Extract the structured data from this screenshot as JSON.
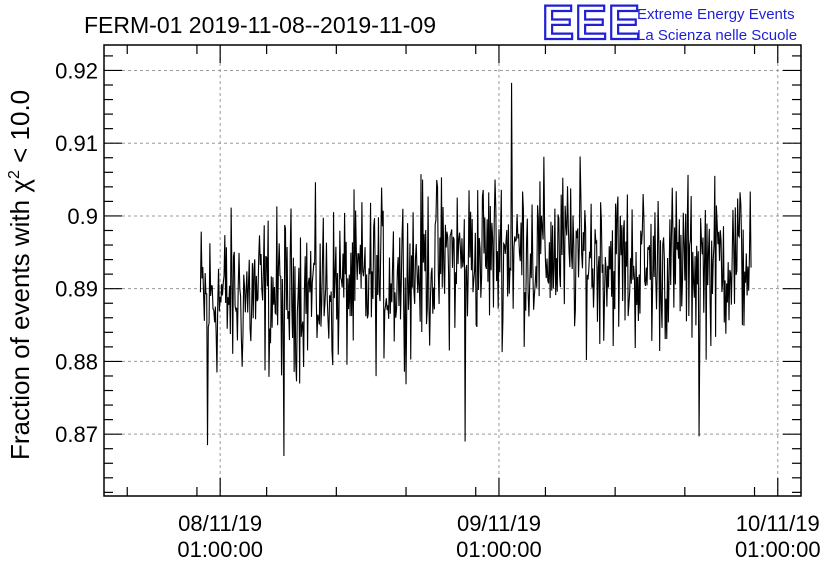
{
  "chart_data": {
    "type": "line",
    "title": "FERM-01 2019-11-08--2019-11-09",
    "ylabel": "Fraction of events with χ² < 10.0",
    "ylabel_parts": {
      "pre": "Fraction of events with ",
      "chi": "χ",
      "sup": "2",
      "post": " < 10.0"
    },
    "xlabel": "",
    "ylim": [
      0.8615,
      0.9235
    ],
    "xlim_hours": [
      -10.0,
      50.0
    ],
    "grid": true,
    "yticks": [
      {
        "value": 0.87,
        "label": "0.87"
      },
      {
        "value": 0.88,
        "label": "0.88"
      },
      {
        "value": 0.89,
        "label": "0.89"
      },
      {
        "value": 0.9,
        "label": "0.9"
      },
      {
        "value": 0.91,
        "label": "0.91"
      },
      {
        "value": 0.92,
        "label": "0.92"
      }
    ],
    "xticks": [
      {
        "hours": 0,
        "date": "08/11/19",
        "time": "01:00:00"
      },
      {
        "hours": 24,
        "date": "09/11/19",
        "time": "01:00:00"
      },
      {
        "hours": 48,
        "date": "10/11/19",
        "time": "01:00:00"
      }
    ],
    "series": [
      {
        "x_range_hours": [
          -1.7,
          45.7
        ],
        "sample_count": 700,
        "mean_profile": [
          {
            "hours": -1.7,
            "value": 0.8885
          },
          {
            "hours": 6,
            "value": 0.8895
          },
          {
            "hours": 12,
            "value": 0.8905
          },
          {
            "hours": 18,
            "value": 0.8935
          },
          {
            "hours": 24,
            "value": 0.8955
          },
          {
            "hours": 30,
            "value": 0.895
          },
          {
            "hours": 36,
            "value": 0.893
          },
          {
            "hours": 42,
            "value": 0.8935
          },
          {
            "hours": 45.7,
            "value": 0.8945
          }
        ],
        "noise_spread": 0.0055,
        "extremes": [
          {
            "hours": -1.1,
            "value": 0.8685
          },
          {
            "hours": 5.5,
            "value": 0.867
          },
          {
            "hours": 21.1,
            "value": 0.869
          },
          {
            "hours": 25.1,
            "value": 0.9183
          },
          {
            "hours": 41.2,
            "value": 0.8697
          }
        ]
      }
    ]
  },
  "logo": {
    "mark": "EEE",
    "line1": "Extreme Energy Events",
    "line2": "La Scienza nelle Scuole"
  }
}
